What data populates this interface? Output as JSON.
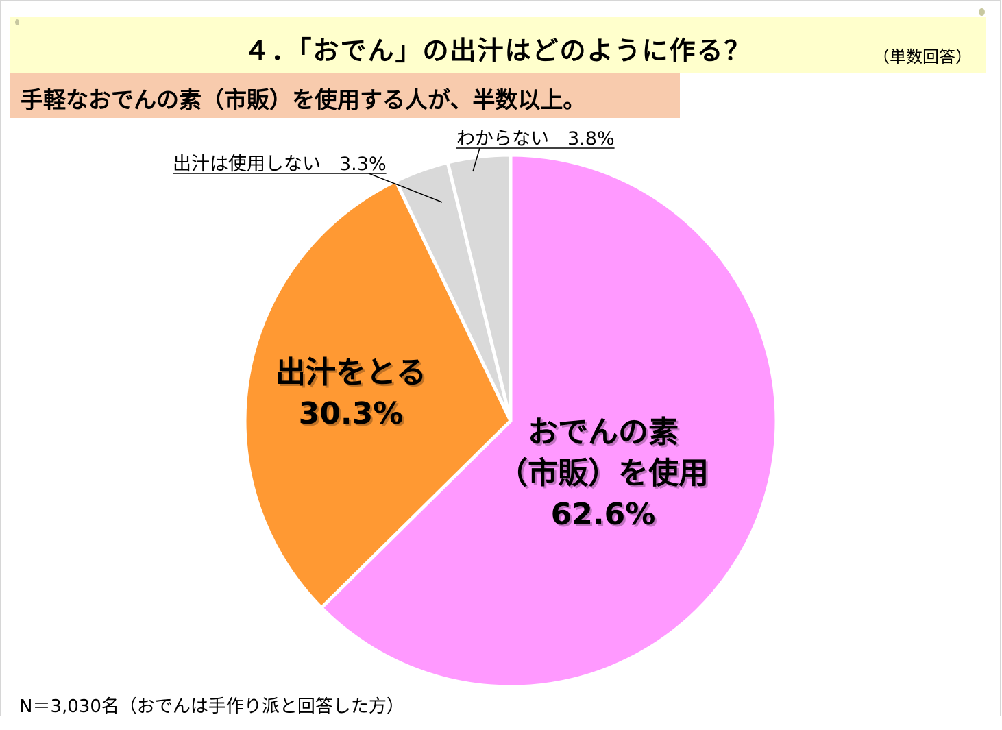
{
  "header": {
    "title": "４．「おでん」の出汁はどのように作る？",
    "note": "（単数回答）",
    "subtitle": "手軽なおでんの素（市販）を使用する人が、半数以上。"
  },
  "footnote": "N＝3,030名（おでんは手作り派と回答した方）",
  "colors": {
    "slice_odennomoto": "#ff99ff",
    "slice_dashi": "#ff9933",
    "slice_other": "#d9d9d9"
  },
  "chart_data": {
    "type": "pie",
    "start": "12 o'clock",
    "direction": "clockwise",
    "slices": [
      {
        "label_lines": [
          "おでんの素",
          "（市販）を使用"
        ],
        "value_label": "62.6%",
        "value": 62.6,
        "color": "#ff99ff"
      },
      {
        "label_lines": [
          "出汁をとる"
        ],
        "value_label": "30.3%",
        "value": 30.3,
        "color": "#ff9933"
      },
      {
        "label_lines": [
          "出汁は使用しない"
        ],
        "value_label": "3.3%",
        "value": 3.3,
        "color": "#d9d9d9"
      },
      {
        "label_lines": [
          "わからない"
        ],
        "value_label": "3.8%",
        "value": 3.8,
        "color": "#d9d9d9"
      }
    ]
  }
}
